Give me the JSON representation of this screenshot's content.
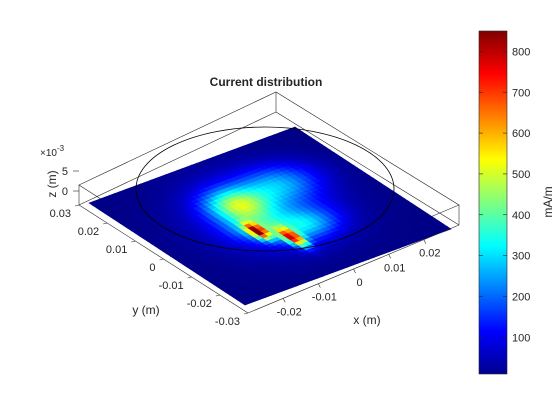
{
  "chart_data": {
    "type": "heatmap",
    "title": "Current distribution",
    "xlabel": "x (m)",
    "ylabel": "y (m)",
    "zlabel": "z (m)",
    "z_exponent_label": "×10",
    "z_exponent_power": "-3",
    "xlim": [
      -0.03,
      0.03
    ],
    "ylim": [
      -0.03,
      0.03
    ],
    "zlim": [
      0,
      5
    ],
    "x_ticks": [
      "-0.02",
      "-0.01",
      "0",
      "0.01",
      "0.02"
    ],
    "y_ticks": [
      "-0.03",
      "-0.02",
      "-0.01",
      "0",
      "0.01",
      "0.02",
      "0.03"
    ],
    "z_ticks": [
      "0",
      "5"
    ],
    "colorbar": {
      "label": "mA/m",
      "ticks": [
        "100",
        "200",
        "300",
        "400",
        "500",
        "600",
        "700",
        "800"
      ],
      "range": [
        10,
        850
      ],
      "colormap": "jet"
    },
    "outline_circle_radius": 0.025,
    "blobs": [
      {
        "u": 0.5,
        "v": 0.46,
        "su": 0.18,
        "sv": 0.2,
        "amp": 170
      },
      {
        "u": 0.45,
        "v": 0.36,
        "su": 0.08,
        "sv": 0.09,
        "amp": 320
      },
      {
        "u": 0.68,
        "v": 0.32,
        "su": 0.12,
        "sv": 0.1,
        "amp": 180
      },
      {
        "u": 0.56,
        "v": 0.64,
        "su": 0.1,
        "sv": 0.08,
        "amp": 200
      },
      {
        "u": 0.4,
        "v": 0.53,
        "su": 0.08,
        "sv": 0.07,
        "amp": 130
      },
      {
        "u": 0.39,
        "v": 0.57,
        "su": 0.022,
        "sv": 0.05,
        "amp": 620
      },
      {
        "u": 0.47,
        "v": 0.69,
        "su": 0.022,
        "sv": 0.06,
        "amp": 600
      }
    ],
    "background_level": 15
  }
}
